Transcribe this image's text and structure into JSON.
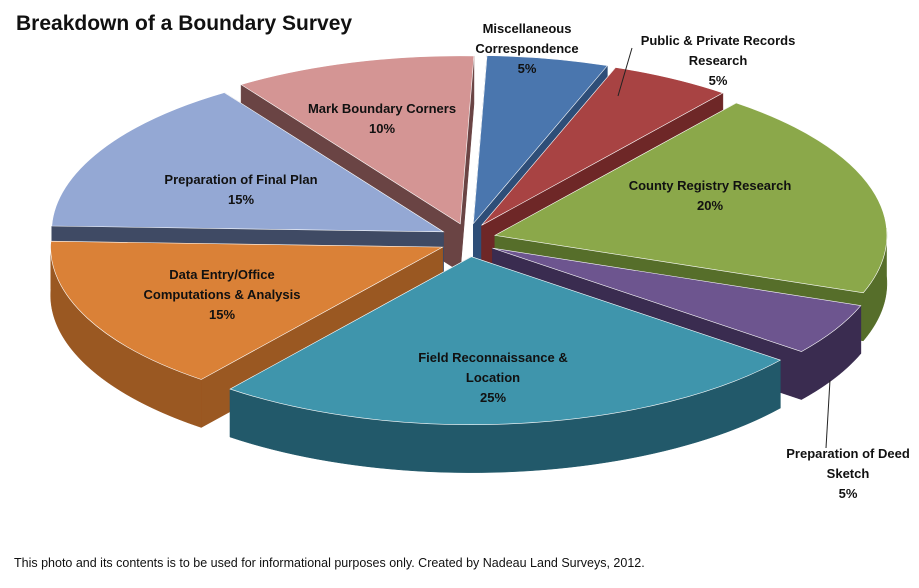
{
  "chart_data": {
    "type": "pie",
    "title": "Breakdown of a Boundary Survey",
    "slices": [
      {
        "label": [
          "Miscellaneous",
          "Correspondence"
        ],
        "value": 5,
        "value_label": "5%",
        "color": "#4A76AE",
        "side": "#2E4E78"
      },
      {
        "label": [
          "Public & Private Records",
          "Research"
        ],
        "value": 5,
        "value_label": "5%",
        "color": "#A84343",
        "side": "#6E2727"
      },
      {
        "label": [
          "County Registry Research"
        ],
        "value": 20,
        "value_label": "20%",
        "color": "#8BA84A",
        "side": "#566E2A"
      },
      {
        "label": [
          "Preparation of Deed",
          "Sketch"
        ],
        "value": 5,
        "value_label": "5%",
        "color": "#6D558F",
        "side": "#3A2C50"
      },
      {
        "label": [
          "Field Reconnaissance &",
          "Location"
        ],
        "value": 25,
        "value_label": "25%",
        "color": "#3F95AC",
        "side": "#22596A"
      },
      {
        "label": [
          "Data Entry/Office",
          "Computations & Analysis"
        ],
        "value": 15,
        "value_label": "15%",
        "color": "#DA8137",
        "side": "#9A5822"
      },
      {
        "label": [
          "Preparation of Final Plan"
        ],
        "value": 15,
        "value_label": "15%",
        "color": "#94A8D4",
        "side": "#3F4A64"
      },
      {
        "label": [
          "Mark Boundary Corners"
        ],
        "value": 10,
        "value_label": "10%",
        "color": "#D49594",
        "side": "#6A4444"
      }
    ]
  },
  "footer": "This photo and its contents is to be used for informational purposes only.  Created by Nadeau Land Surveys, 2012."
}
